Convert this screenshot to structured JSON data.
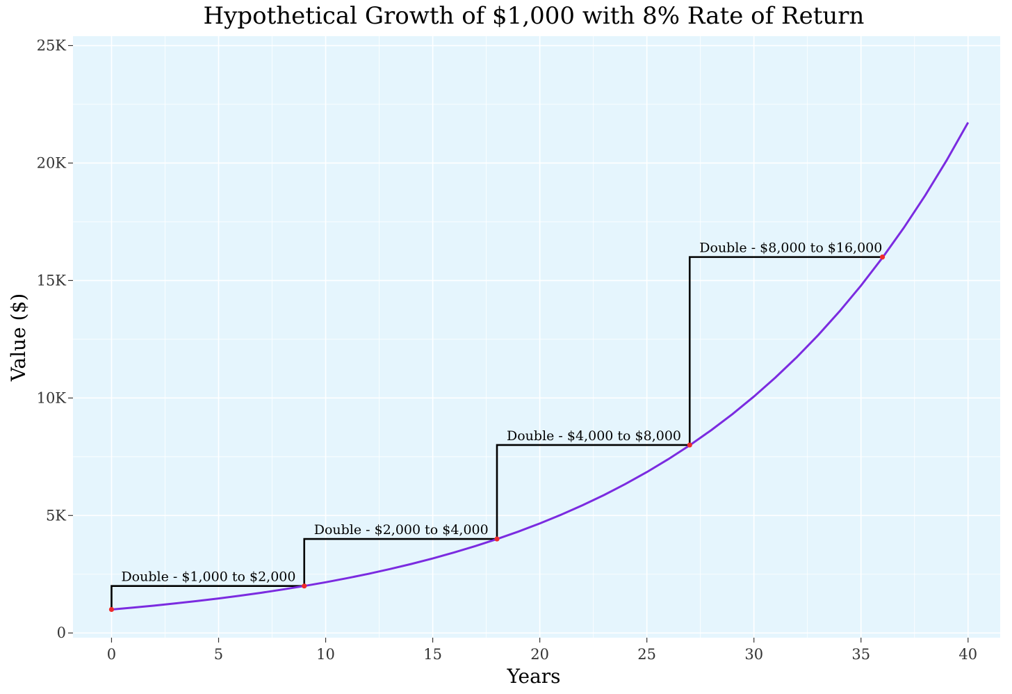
{
  "chart_data": {
    "type": "line",
    "title": "Hypothetical Growth of $1,000 with 8% Rate of Return",
    "xlabel": "Years",
    "ylabel": "Value ($)",
    "xlim": [
      -1.8,
      41.5
    ],
    "ylim": [
      -200,
      25400
    ],
    "x_ticks": [
      0,
      5,
      10,
      15,
      20,
      25,
      30,
      35,
      40
    ],
    "y_ticks": [
      0,
      5000,
      10000,
      15000,
      20000,
      25000
    ],
    "y_tick_labels": [
      "0",
      "5K",
      "10K",
      "15K",
      "20K",
      "25K"
    ],
    "grid": true,
    "legend": "none",
    "colors": {
      "plot_background": "#e5f5fd",
      "grid": "#ffffff",
      "line": "#7b2be0",
      "marker": "#ef2b2b",
      "step": "#000000"
    },
    "series": [
      {
        "x": [
          0,
          1,
          2,
          3,
          4,
          5,
          6,
          7,
          8,
          9,
          10,
          11,
          12,
          13,
          14,
          15,
          16,
          17,
          18,
          19,
          20,
          21,
          22,
          23,
          24,
          25,
          26,
          27,
          28,
          29,
          30,
          31,
          32,
          33,
          34,
          35,
          36,
          37,
          38,
          39,
          40
        ],
        "y": [
          1000,
          1080,
          1166,
          1260,
          1360,
          1469,
          1587,
          1714,
          1851,
          1999,
          2159,
          2332,
          2518,
          2720,
          2937,
          3172,
          3426,
          3700,
          3996,
          4316,
          4661,
          5034,
          5437,
          5871,
          6341,
          6848,
          7396,
          7988,
          8627,
          9317,
          10063,
          10868,
          11737,
          12676,
          13690,
          14785,
          15968,
          17246,
          18625,
          20115,
          21725
        ]
      }
    ],
    "doubling_points": [
      {
        "x": 0,
        "y": 1000
      },
      {
        "x": 9,
        "y": 2000
      },
      {
        "x": 18,
        "y": 4000
      },
      {
        "x": 27,
        "y": 8000
      },
      {
        "x": 36,
        "y": 16000
      }
    ],
    "annotations": [
      {
        "text": "Double - $1,000 to $2,000",
        "x_start": 0,
        "x_end": 9,
        "y_from": 1000,
        "y_to": 2000
      },
      {
        "text": "Double - $2,000 to $4,000",
        "x_start": 9,
        "x_end": 18,
        "y_from": 2000,
        "y_to": 4000
      },
      {
        "text": "Double - $4,000 to $8,000",
        "x_start": 18,
        "x_end": 27,
        "y_from": 4000,
        "y_to": 8000
      },
      {
        "text": "Double - $8,000 to $16,000",
        "x_start": 27,
        "x_end": 36,
        "y_from": 8000,
        "y_to": 16000
      }
    ]
  }
}
